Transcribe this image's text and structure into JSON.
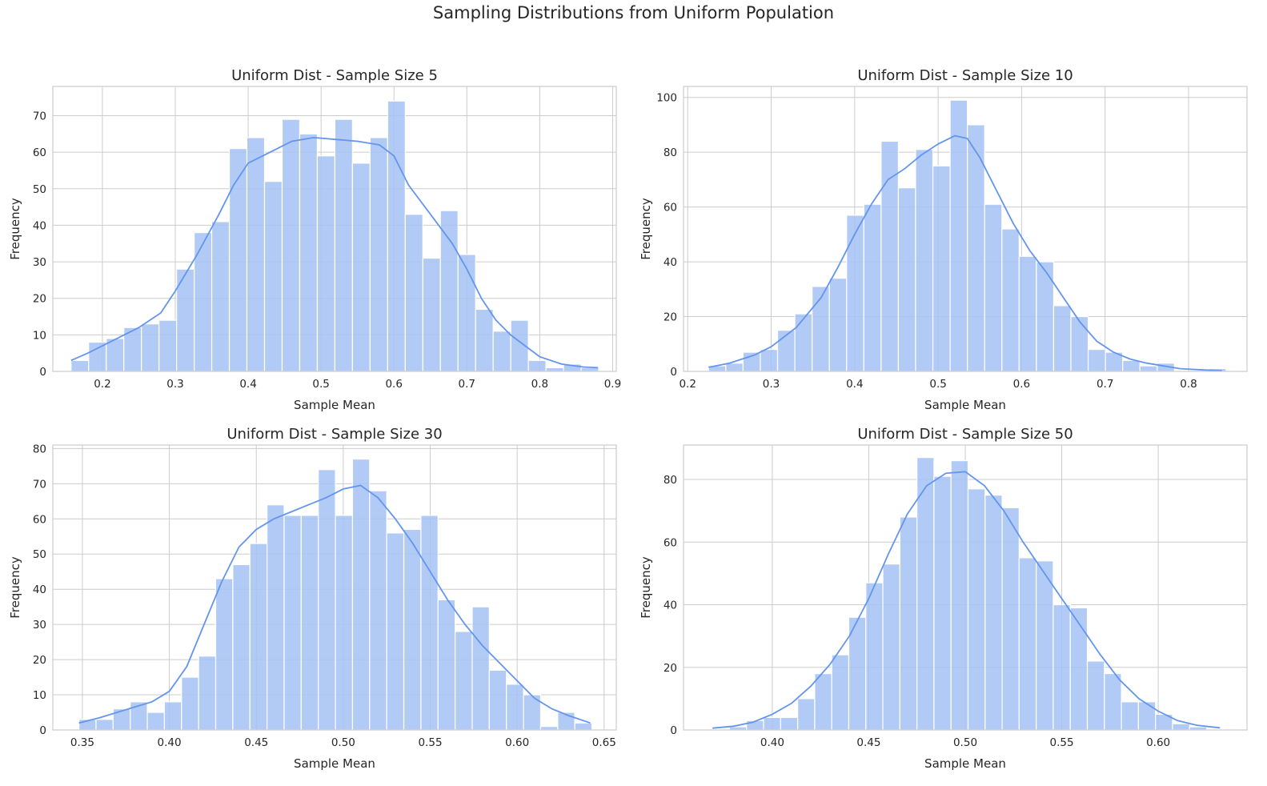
{
  "figure": {
    "suptitle": "Sampling Distributions from Uniform Population"
  },
  "colors": {
    "bar": "#a4c2f4",
    "kde": "#6495ed",
    "grid": "#cccccc"
  },
  "chart_data": [
    {
      "type": "bar",
      "title": "Uniform Dist - Sample Size 5",
      "xlabel": "Sample Mean",
      "ylabel": "Frequency",
      "xlim": [
        0.132,
        0.905
      ],
      "ylim": [
        0,
        78
      ],
      "xticks": [
        0.2,
        0.3,
        0.4,
        0.5,
        0.6,
        0.7,
        0.8,
        0.9
      ],
      "xtick_labels": [
        "0.2",
        "0.3",
        "0.4",
        "0.5",
        "0.6",
        "0.7",
        "0.8",
        "0.9"
      ],
      "yticks": [
        0,
        10,
        20,
        30,
        40,
        50,
        60,
        70
      ],
      "bin_start": 0.157,
      "bin_width": 0.02413,
      "counts": [
        3,
        8,
        9,
        12,
        13,
        14,
        28,
        38,
        41,
        61,
        64,
        52,
        69,
        65,
        59,
        69,
        57,
        64,
        74,
        43,
        31,
        44,
        32,
        17,
        11,
        14,
        3,
        1,
        2,
        1
      ],
      "kde": [
        [
          0.157,
          3
        ],
        [
          0.18,
          5
        ],
        [
          0.2,
          7
        ],
        [
          0.22,
          9
        ],
        [
          0.25,
          12
        ],
        [
          0.28,
          16
        ],
        [
          0.3,
          22
        ],
        [
          0.33,
          32
        ],
        [
          0.36,
          43
        ],
        [
          0.38,
          51
        ],
        [
          0.4,
          57
        ],
        [
          0.43,
          60
        ],
        [
          0.46,
          63
        ],
        [
          0.49,
          64
        ],
        [
          0.52,
          63.5
        ],
        [
          0.55,
          63
        ],
        [
          0.58,
          62
        ],
        [
          0.6,
          59
        ],
        [
          0.62,
          51
        ],
        [
          0.65,
          43
        ],
        [
          0.68,
          35
        ],
        [
          0.7,
          28
        ],
        [
          0.72,
          20
        ],
        [
          0.74,
          14
        ],
        [
          0.76,
          10
        ],
        [
          0.78,
          7
        ],
        [
          0.8,
          4
        ],
        [
          0.83,
          2
        ],
        [
          0.86,
          1.2
        ],
        [
          0.88,
          1
        ]
      ]
    },
    {
      "type": "bar",
      "title": "Uniform Dist - Sample Size 10",
      "xlabel": "Sample Mean",
      "ylabel": "Frequency",
      "xlim": [
        0.195,
        0.87
      ],
      "ylim": [
        0,
        104
      ],
      "xticks": [
        0.2,
        0.3,
        0.4,
        0.5,
        0.6,
        0.7,
        0.8
      ],
      "xtick_labels": [
        "0.2",
        "0.3",
        "0.4",
        "0.5",
        "0.6",
        "0.7",
        "0.8"
      ],
      "yticks": [
        0,
        20,
        40,
        60,
        80,
        100
      ],
      "bin_start": 0.225,
      "bin_width": 0.02067,
      "counts": [
        2,
        3,
        7,
        8,
        15,
        21,
        31,
        34,
        57,
        61,
        84,
        67,
        81,
        75,
        99,
        90,
        61,
        52,
        42,
        40,
        24,
        20,
        8,
        7,
        4,
        2,
        3,
        0,
        0,
        1
      ],
      "kde": [
        [
          0.225,
          1.5
        ],
        [
          0.25,
          3
        ],
        [
          0.28,
          6
        ],
        [
          0.3,
          9
        ],
        [
          0.33,
          16
        ],
        [
          0.36,
          27
        ],
        [
          0.38,
          38
        ],
        [
          0.4,
          50
        ],
        [
          0.42,
          61
        ],
        [
          0.44,
          70
        ],
        [
          0.46,
          74
        ],
        [
          0.48,
          79
        ],
        [
          0.5,
          83
        ],
        [
          0.52,
          86
        ],
        [
          0.535,
          85
        ],
        [
          0.55,
          78
        ],
        [
          0.57,
          66
        ],
        [
          0.59,
          54
        ],
        [
          0.61,
          44
        ],
        [
          0.63,
          36
        ],
        [
          0.65,
          27
        ],
        [
          0.67,
          18
        ],
        [
          0.69,
          11
        ],
        [
          0.71,
          7
        ],
        [
          0.73,
          4.5
        ],
        [
          0.75,
          3
        ],
        [
          0.77,
          2
        ],
        [
          0.79,
          1
        ],
        [
          0.82,
          0.5
        ],
        [
          0.84,
          0.3
        ]
      ]
    },
    {
      "type": "bar",
      "title": "Uniform Dist - Sample Size 30",
      "xlabel": "Sample Mean",
      "ylabel": "Frequency",
      "xlim": [
        0.333,
        0.657
      ],
      "ylim": [
        0,
        81
      ],
      "xticks": [
        0.35,
        0.4,
        0.45,
        0.5,
        0.55,
        0.6,
        0.65
      ],
      "xtick_labels": [
        "0.35",
        "0.40",
        "0.45",
        "0.50",
        "0.55",
        "0.60",
        "0.65"
      ],
      "yticks": [
        0,
        10,
        20,
        30,
        40,
        50,
        60,
        70,
        80
      ],
      "bin_start": 0.348,
      "bin_width": 0.009833,
      "counts": [
        3,
        3,
        6,
        8,
        5,
        8,
        15,
        21,
        43,
        47,
        53,
        64,
        61,
        61,
        74,
        61,
        77,
        68,
        56,
        57,
        61,
        37,
        28,
        35,
        17,
        13,
        10,
        1,
        5,
        2
      ],
      "kde": [
        [
          0.348,
          2
        ],
        [
          0.36,
          3.5
        ],
        [
          0.37,
          5
        ],
        [
          0.38,
          6.5
        ],
        [
          0.39,
          8
        ],
        [
          0.4,
          11
        ],
        [
          0.41,
          18
        ],
        [
          0.42,
          30
        ],
        [
          0.43,
          42
        ],
        [
          0.44,
          52
        ],
        [
          0.45,
          57
        ],
        [
          0.46,
          60
        ],
        [
          0.47,
          62
        ],
        [
          0.48,
          64
        ],
        [
          0.49,
          66
        ],
        [
          0.5,
          68.5
        ],
        [
          0.51,
          69.5
        ],
        [
          0.52,
          66
        ],
        [
          0.53,
          60
        ],
        [
          0.54,
          53
        ],
        [
          0.55,
          45
        ],
        [
          0.56,
          37
        ],
        [
          0.57,
          30
        ],
        [
          0.58,
          24
        ],
        [
          0.59,
          19
        ],
        [
          0.6,
          14
        ],
        [
          0.61,
          9
        ],
        [
          0.62,
          6
        ],
        [
          0.63,
          4
        ],
        [
          0.642,
          2
        ]
      ]
    },
    {
      "type": "bar",
      "title": "Uniform Dist - Sample Size 50",
      "xlabel": "Sample Mean",
      "ylabel": "Frequency",
      "xlim": [
        0.354,
        0.646
      ],
      "ylim": [
        0,
        91
      ],
      "xticks": [
        0.4,
        0.45,
        0.5,
        0.55,
        0.6
      ],
      "xtick_labels": [
        "0.40",
        "0.45",
        "0.50",
        "0.55",
        "0.60"
      ],
      "yticks": [
        0,
        20,
        40,
        60,
        80
      ],
      "bin_start": 0.369,
      "bin_width": 0.00883,
      "counts": [
        0,
        1,
        3,
        4,
        4,
        10,
        18,
        24,
        36,
        47,
        53,
        68,
        87,
        81,
        86,
        77,
        75,
        71,
        55,
        54,
        40,
        39,
        22,
        18,
        9,
        9,
        5,
        2,
        1,
        0
      ],
      "kde": [
        [
          0.369,
          0.6
        ],
        [
          0.38,
          1.2
        ],
        [
          0.39,
          2.5
        ],
        [
          0.4,
          5
        ],
        [
          0.41,
          8.5
        ],
        [
          0.42,
          14
        ],
        [
          0.43,
          21
        ],
        [
          0.44,
          30
        ],
        [
          0.45,
          42
        ],
        [
          0.46,
          56
        ],
        [
          0.47,
          69
        ],
        [
          0.48,
          78
        ],
        [
          0.49,
          82
        ],
        [
          0.5,
          82.5
        ],
        [
          0.51,
          78
        ],
        [
          0.52,
          70
        ],
        [
          0.53,
          60
        ],
        [
          0.54,
          51
        ],
        [
          0.55,
          42
        ],
        [
          0.56,
          33
        ],
        [
          0.57,
          24
        ],
        [
          0.58,
          16
        ],
        [
          0.59,
          10
        ],
        [
          0.6,
          6
        ],
        [
          0.61,
          3
        ],
        [
          0.62,
          1.5
        ],
        [
          0.632,
          0.7
        ]
      ]
    }
  ]
}
